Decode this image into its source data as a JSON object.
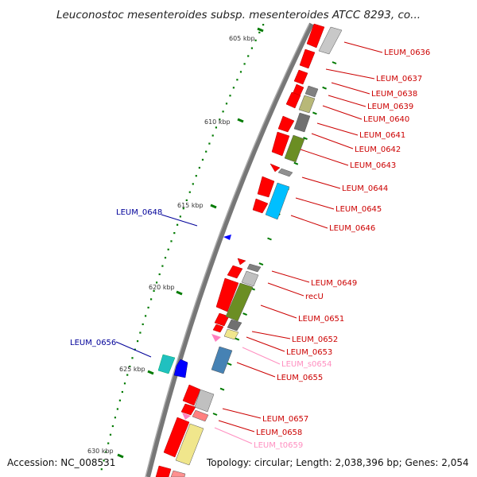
{
  "title": "Leuconostoc mesenteroides subsp. mesenteroides ATCC 8293, co...",
  "footer": {
    "accession": "Accession: NC_008531",
    "topology": "Topology: circular; Length: 2,038,396 bp; Genes: 2,054"
  },
  "colors": {
    "cds_forward": "#ff0000",
    "cds_reverse": "#0000ff",
    "rna": "#ff7fbf",
    "backbone": "#777777",
    "tick": "#007a00",
    "label_forward": "#cc0000",
    "label_reverse": "#000099",
    "label_rna": "#ff8fc0"
  },
  "ticks": [
    {
      "label": "605 kbp"
    },
    {
      "label": "610 kbp"
    },
    {
      "label": "615 kbp"
    },
    {
      "label": "620 kbp"
    },
    {
      "label": "625 kbp"
    },
    {
      "label": "630 kbp"
    }
  ],
  "gene_labels": [
    {
      "text": "LEUM_0636",
      "strand": "+"
    },
    {
      "text": "LEUM_0637",
      "strand": "+"
    },
    {
      "text": "LEUM_0638",
      "strand": "+"
    },
    {
      "text": "LEUM_0639",
      "strand": "+"
    },
    {
      "text": "LEUM_0640",
      "strand": "+"
    },
    {
      "text": "LEUM_0641",
      "strand": "+"
    },
    {
      "text": "LEUM_0642",
      "strand": "+"
    },
    {
      "text": "LEUM_0643",
      "strand": "+"
    },
    {
      "text": "LEUM_0644",
      "strand": "+"
    },
    {
      "text": "LEUM_0645",
      "strand": "+"
    },
    {
      "text": "LEUM_0646",
      "strand": "+"
    },
    {
      "text": "LEUM_0648",
      "strand": "-"
    },
    {
      "text": "LEUM_0649",
      "strand": "+"
    },
    {
      "text": "recU",
      "strand": "+"
    },
    {
      "text": "LEUM_0651",
      "strand": "+"
    },
    {
      "text": "LEUM_0652",
      "strand": "+"
    },
    {
      "text": "LEUM_0653",
      "strand": "+"
    },
    {
      "text": "LEUM_s0654",
      "strand": "rna"
    },
    {
      "text": "LEUM_0655",
      "strand": "+"
    },
    {
      "text": "LEUM_0656",
      "strand": "-"
    },
    {
      "text": "LEUM_0657",
      "strand": "+"
    },
    {
      "text": "LEUM_0658",
      "strand": "+"
    },
    {
      "text": "LEUM_t0659",
      "strand": "rna"
    }
  ]
}
